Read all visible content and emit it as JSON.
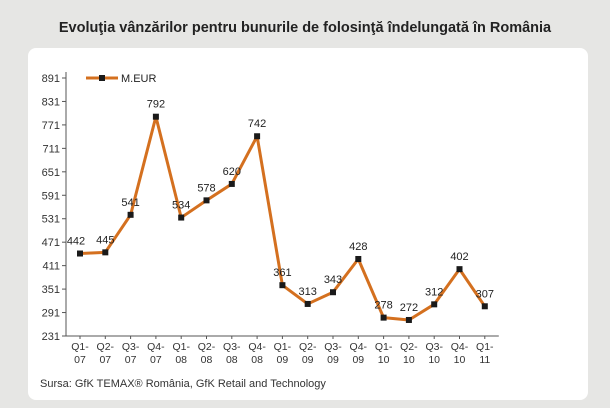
{
  "title": "Evoluţia vânzărilor pentru bunurile de folosinţă îndelungată în România",
  "source": "Sursa: GfK TEMAX® România, GfK Retail and Technology",
  "colors": {
    "line": "#d4701f",
    "marker": "#1a1a1a",
    "axis": "#555555",
    "background": "#e6e6e4",
    "panel": "#ffffff"
  },
  "chart_data": {
    "type": "line",
    "categories": [
      "Q1-07",
      "Q2-07",
      "Q3-07",
      "Q4-07",
      "Q1-08",
      "Q2-08",
      "Q3-08",
      "Q4-08",
      "Q1-09",
      "Q2-09",
      "Q3-09",
      "Q4-09",
      "Q1-10",
      "Q2-10",
      "Q3-10",
      "Q4-10",
      "Q1-11"
    ],
    "category_lines": [
      [
        "Q1-",
        "07"
      ],
      [
        "Q2-",
        "07"
      ],
      [
        "Q3-",
        "07"
      ],
      [
        "Q4-",
        "07"
      ],
      [
        "Q1-",
        "08"
      ],
      [
        "Q2-",
        "08"
      ],
      [
        "Q3-",
        "08"
      ],
      [
        "Q4-",
        "08"
      ],
      [
        "Q1-",
        "09"
      ],
      [
        "Q2-",
        "09"
      ],
      [
        "Q3-",
        "09"
      ],
      [
        "Q4-",
        "09"
      ],
      [
        "Q1-",
        "10"
      ],
      [
        "Q2-",
        "10"
      ],
      [
        "Q3-",
        "10"
      ],
      [
        "Q4-",
        "10"
      ],
      [
        "Q1-",
        "11"
      ]
    ],
    "series": [
      {
        "name": "M.EUR",
        "values": [
          442,
          445,
          541,
          792,
          534,
          578,
          620,
          742,
          361,
          313,
          343,
          428,
          278,
          272,
          312,
          402,
          307
        ]
      }
    ],
    "yticks": [
      231,
      291,
      351,
      411,
      471,
      531,
      591,
      651,
      711,
      771,
      831,
      891
    ],
    "ylim": [
      231,
      891
    ],
    "legend": "top-left",
    "grid": false
  }
}
